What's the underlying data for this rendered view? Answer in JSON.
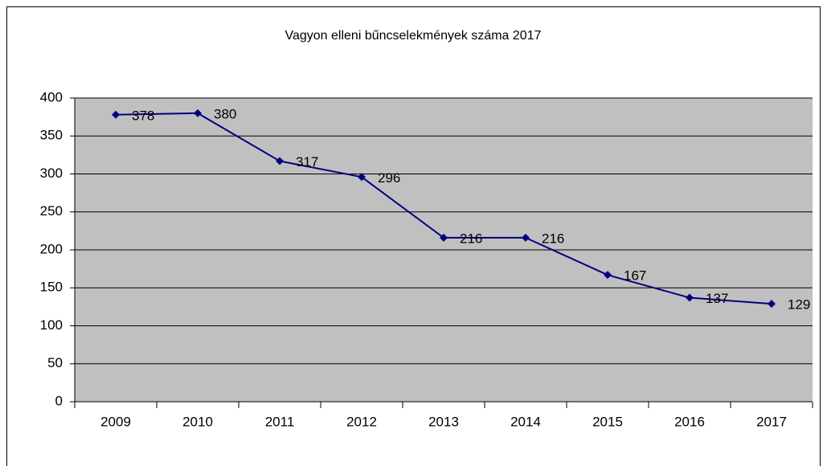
{
  "chart_data": {
    "type": "line",
    "title": "Vagyon elleni bűncselekmények száma 2017",
    "categories": [
      "2009",
      "2010",
      "2011",
      "2012",
      "2013",
      "2014",
      "2015",
      "2016",
      "2017"
    ],
    "series": [
      {
        "name": "Vagyon elleni bűncselekmények",
        "color": "#000080",
        "values": [
          378,
          380,
          317,
          296,
          216,
          216,
          167,
          137,
          129
        ]
      }
    ],
    "ylim": [
      0,
      400
    ],
    "yticks": [
      0,
      50,
      100,
      150,
      200,
      250,
      300,
      350,
      400
    ],
    "grid": true,
    "plot_background": "#c0c0c0"
  }
}
